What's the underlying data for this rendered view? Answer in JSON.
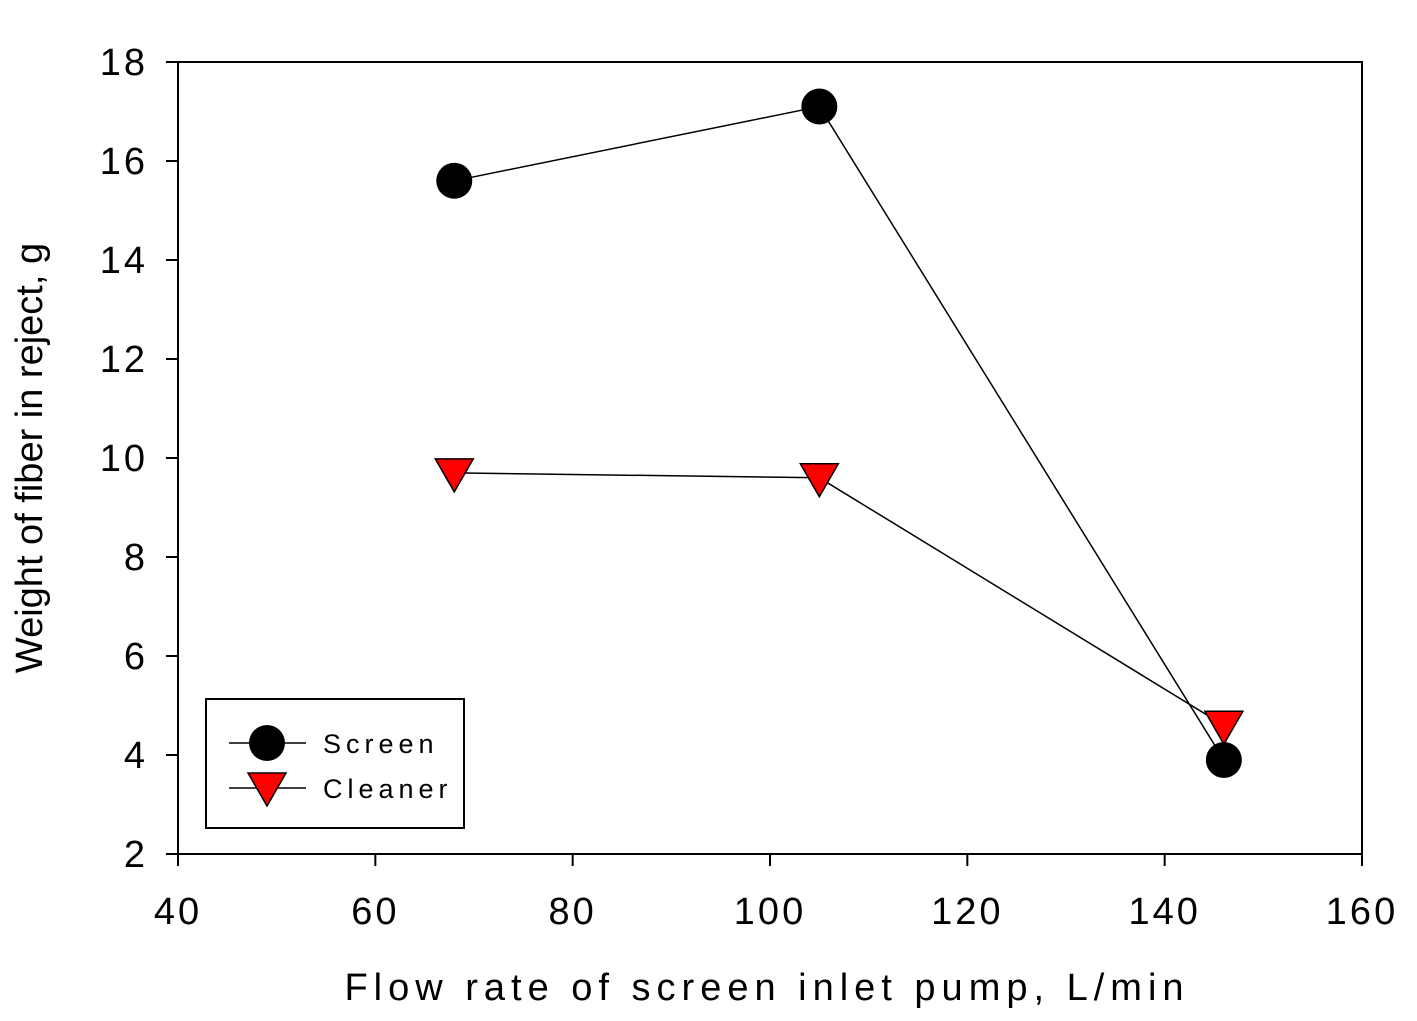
{
  "chart_data": {
    "type": "line",
    "xlabel": "Flow rate of screen inlet pump, L/min",
    "ylabel": "Weight of fiber in reject, g",
    "xlim": [
      40,
      160
    ],
    "ylim": [
      2,
      18
    ],
    "xticks": [
      40,
      60,
      80,
      100,
      120,
      140,
      160
    ],
    "yticks": [
      2,
      4,
      6,
      8,
      10,
      12,
      14,
      16,
      18
    ],
    "grid": false,
    "legend_position": "bottom-left",
    "series": [
      {
        "name": "Screen",
        "marker": "circle",
        "color": "#000000",
        "x": [
          68,
          105,
          146
        ],
        "y": [
          15.6,
          17.1,
          3.9
        ]
      },
      {
        "name": "Cleaner",
        "marker": "triangle-down",
        "color": "#ff0000",
        "x": [
          68,
          105,
          146
        ],
        "y": [
          9.7,
          9.6,
          4.6
        ]
      }
    ]
  }
}
